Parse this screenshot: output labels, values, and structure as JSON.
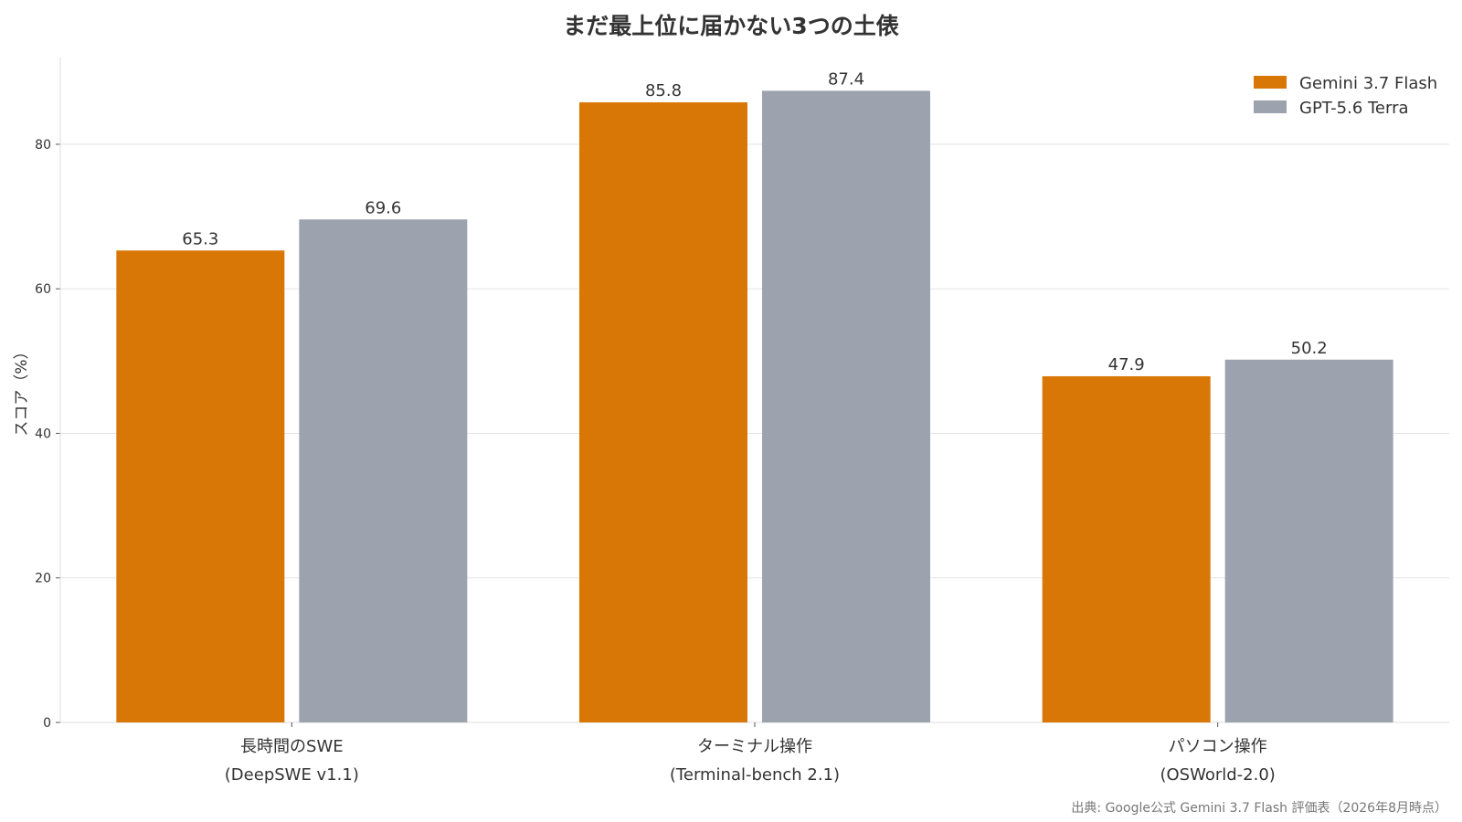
{
  "chart_data": {
    "type": "bar",
    "title": "まだ最上位に届かない3つの土俵",
    "ylabel": "スコア（%）",
    "xlabel": "",
    "ylim": [
      0,
      92
    ],
    "yticks": [
      0,
      20,
      40,
      60,
      80
    ],
    "categories": [
      [
        "長時間のSWE",
        "(DeepSWE v1.1)"
      ],
      [
        "ターミナル操作",
        "(Terminal-bench 2.1)"
      ],
      [
        "パソコン操作",
        "(OSWorld-2.0)"
      ]
    ],
    "series": [
      {
        "name": "Gemini 3.7 Flash",
        "color": "#D97706",
        "values": [
          65.3,
          85.8,
          47.9
        ]
      },
      {
        "name": "GPT-5.6 Terra",
        "color": "#9CA3AF",
        "values": [
          69.6,
          87.4,
          50.2
        ]
      }
    ],
    "grid": true,
    "legend_position": "top-right",
    "source": "出典: Google公式 Gemini 3.7 Flash 評価表（2026年8月時点）"
  }
}
